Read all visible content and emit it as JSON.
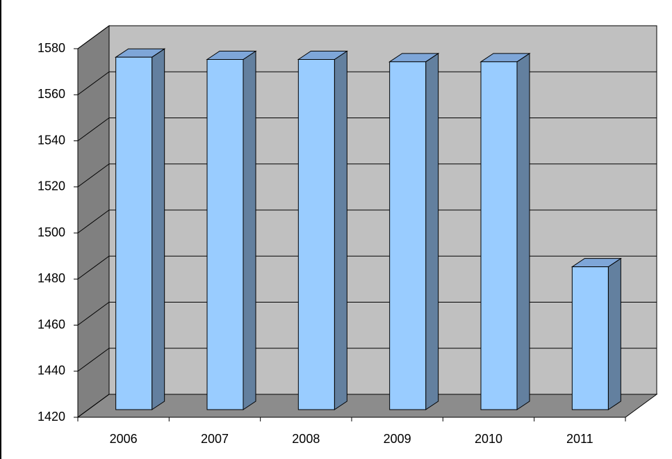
{
  "chart_data": {
    "type": "bar3d",
    "categories": [
      "2006",
      "2007",
      "2008",
      "2009",
      "2010",
      "2011"
    ],
    "values": [
      1573,
      1572,
      1572,
      1571,
      1571,
      1482
    ],
    "color": "#99ccff",
    "ylim": [
      1420,
      1580
    ],
    "yticks": [
      1420,
      1440,
      1460,
      1480,
      1500,
      1520,
      1540,
      1560,
      1580
    ],
    "grid": true
  }
}
